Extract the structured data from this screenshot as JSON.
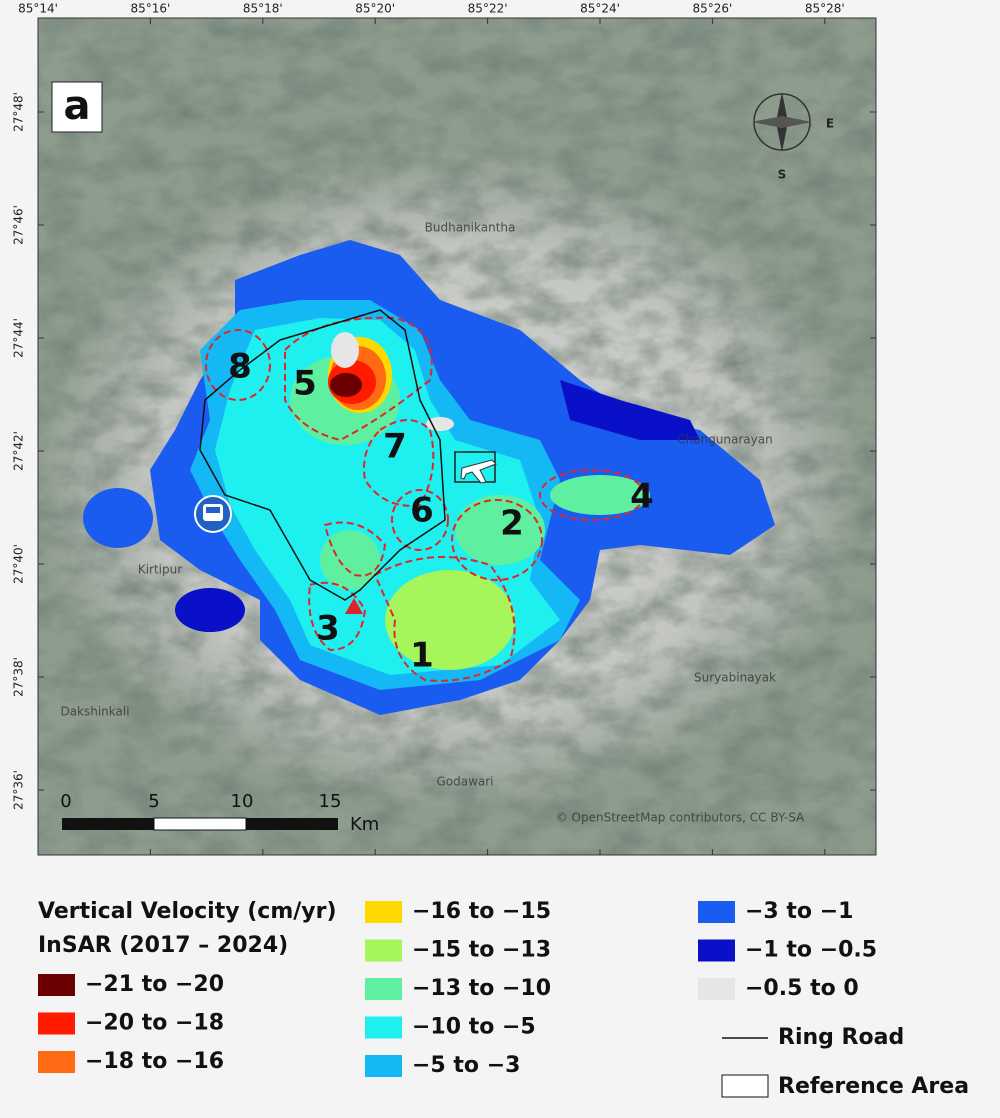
{
  "panel_label": "a",
  "map": {
    "x_ticks": [
      "85°14'",
      "85°16'",
      "85°18'",
      "85°20'",
      "85°22'",
      "85°24'",
      "85°26'",
      "85°28'"
    ],
    "y_ticks": [
      "27°48'",
      "27°46'",
      "27°44'",
      "27°42'",
      "27°40'",
      "27°38'",
      "27°36'"
    ],
    "zones": [
      "8",
      "5",
      "7",
      "6",
      "2",
      "4",
      "3",
      "1"
    ],
    "places": [
      "Budhanikantha",
      "Godawari",
      "Suryabinayak",
      "Dakshinkali",
      "Changunarayan",
      "Kirtipur"
    ],
    "compass": [
      "S",
      "E"
    ],
    "scale_bar": {
      "labels": [
        "0",
        "5",
        "10",
        "15"
      ],
      "unit": "Km"
    },
    "attribution": "© OpenStreetMap contributors, CC BY-SA"
  },
  "legend": {
    "title": "Vertical Velocity (cm/yr)",
    "subtitle": "InSAR (2017 – 2024)",
    "items": [
      {
        "label": "−21 to −20",
        "color": "#6b0000"
      },
      {
        "label": "−20 to −18",
        "color": "#ff1a00"
      },
      {
        "label": "−18 to −16",
        "color": "#ff6a13"
      },
      {
        "label": "−16 to −15",
        "color": "#ffd800"
      },
      {
        "label": "−15 to −13",
        "color": "#a6f55a"
      },
      {
        "label": "−13 to −10",
        "color": "#5ef0a0"
      },
      {
        "label": "−10 to −5",
        "color": "#1ef0f0"
      },
      {
        "label": "−5 to −3",
        "color": "#14b8f5"
      },
      {
        "label": "−3 to −1",
        "color": "#1a5cf0"
      },
      {
        "label": "−1 to −0.5",
        "color": "#0a10c8"
      },
      {
        "label": "−0.5 to 0",
        "color": "#e6e6e6"
      }
    ],
    "ring_road": "Ring Road",
    "reference_area": "Reference Area"
  }
}
